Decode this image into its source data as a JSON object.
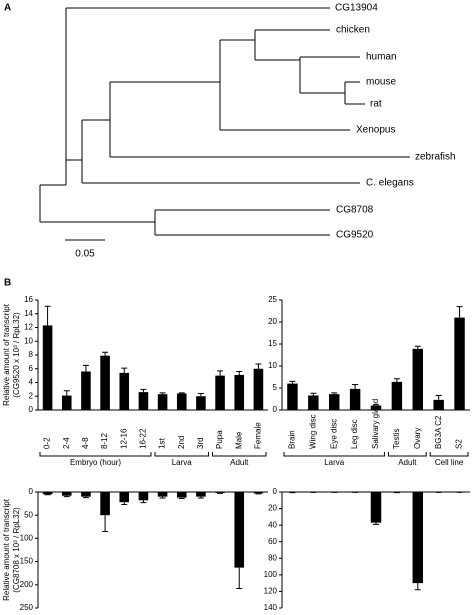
{
  "panels": [
    "A",
    "B"
  ],
  "tree": {
    "leaves": [
      "CG13904",
      "chicken",
      "human",
      "mouse",
      "rat",
      "Xenopus",
      "zebrafish",
      "C. elegans",
      "CG8708",
      "CG9520"
    ],
    "scale_label": "0.05"
  },
  "chart_data": [
    {
      "type": "bar",
      "y_label": [
        "Relative amount of transcript",
        "(CG9520 x 10³ / RpL32)"
      ],
      "groups": [
        {
          "name": "Embryo (hour)",
          "categories": [
            "0-2",
            "2-4",
            "4-8",
            "8-12",
            "12-16",
            "16-22"
          ]
        },
        {
          "name": "Larva",
          "categories": [
            "1st",
            "2nd",
            "3rd"
          ]
        },
        {
          "name": "Adult",
          "categories": [
            "Pupa",
            "Male",
            "Female"
          ]
        }
      ],
      "values": [
        12.3,
        2.1,
        5.6,
        7.9,
        5.4,
        2.6,
        2.3,
        2.4,
        2.0,
        5.0,
        5.1,
        6.0
      ],
      "errors": [
        2.8,
        0.7,
        0.9,
        0.5,
        0.7,
        0.4,
        0.2,
        0.1,
        0.4,
        0.7,
        0.5,
        0.7
      ],
      "color": "#000000",
      "ylim": [
        0,
        16
      ],
      "yticks": [
        0,
        2,
        4,
        6,
        8,
        10,
        12,
        14,
        16
      ]
    },
    {
      "type": "bar",
      "groups": [
        {
          "name": "Larva",
          "categories": [
            "Brain",
            "Wing disc",
            "Eye disc",
            "Leg disc",
            "Salivary gland"
          ]
        },
        {
          "name": "Adult",
          "categories": [
            "Testis",
            "Ovary"
          ]
        },
        {
          "name": "Cell line",
          "categories": [
            "BG3A C2",
            "S2"
          ]
        }
      ],
      "values": [
        6.0,
        3.3,
        3.6,
        4.8,
        1.0,
        6.4,
        13.9,
        2.3,
        21.0
      ],
      "errors": [
        0.5,
        0.5,
        0.3,
        1.0,
        0.2,
        0.7,
        0.6,
        1.0,
        2.5
      ],
      "color": "#000000",
      "ylim": [
        0,
        25
      ],
      "yticks": [
        0,
        5,
        10,
        15,
        20,
        25
      ]
    },
    {
      "type": "bar",
      "y_label": [
        "Relative amount of transcript",
        "(CG8708 x 10³ / RpL32)"
      ],
      "values": [
        5,
        8,
        10,
        50,
        22,
        18,
        10,
        12,
        10,
        2,
        163,
        3
      ],
      "errors": [
        1,
        2,
        2,
        35,
        5,
        5,
        3,
        2,
        3,
        1,
        45,
        1
      ],
      "color": "#000000",
      "ylim": [
        0,
        250
      ],
      "yticks": [
        0,
        50,
        100,
        150,
        200,
        250
      ],
      "y_inverted": true
    },
    {
      "type": "bar",
      "values": [
        0.5,
        0.3,
        0.3,
        0.3,
        37,
        0.5,
        110,
        0.3,
        0.3
      ],
      "errors": [
        0.2,
        0.1,
        0.1,
        0.1,
        2,
        0.2,
        8,
        0.1,
        0.1
      ],
      "color": "#000000",
      "ylim": [
        0,
        140
      ],
      "yticks": [
        0,
        20,
        40,
        60,
        80,
        100,
        120,
        140
      ],
      "y_inverted": true
    }
  ]
}
